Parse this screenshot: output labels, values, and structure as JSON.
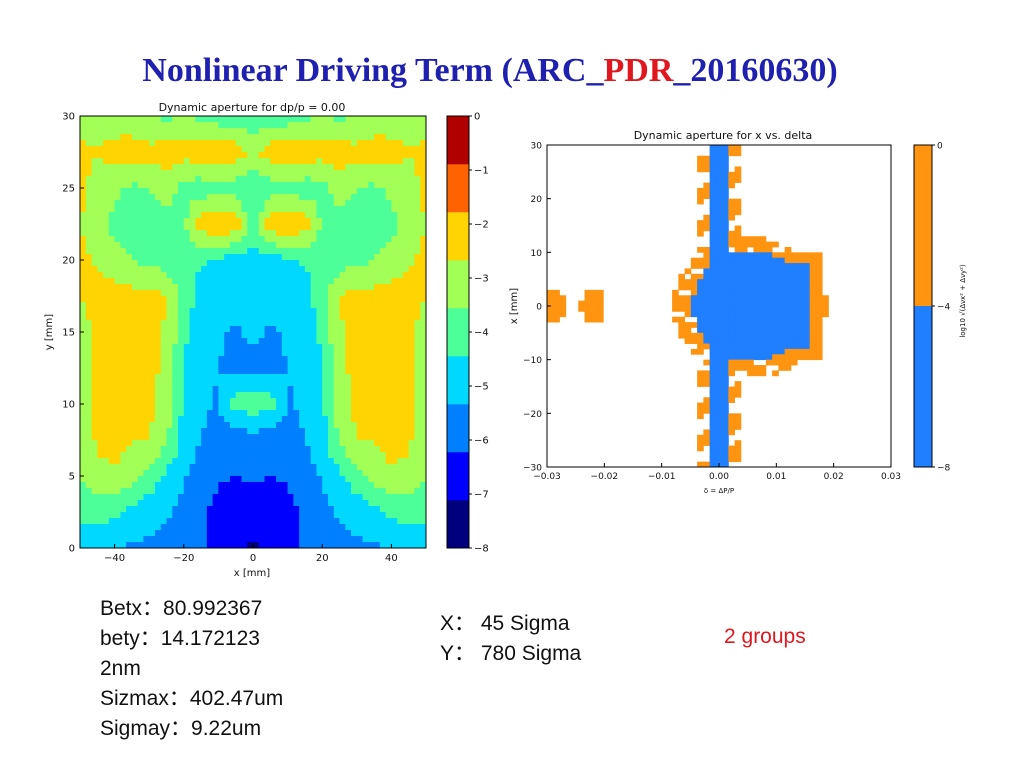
{
  "slide": {
    "title_prefix": "Nonlinear Driving Term (ARC_",
    "title_highlight": "PDR",
    "title_suffix": "_20160630)",
    "params_left": [
      "Betx：80.992367",
      "bety：14.172123",
      "2nm",
      "Sizmax：402.47um",
      "Sigmay：9.22um"
    ],
    "params_mid": [
      "X： 45 Sigma",
      "Y： 780 Sigma"
    ],
    "note": "2 groups"
  },
  "chart_data": [
    {
      "type": "heatmap",
      "title": "Dynamic aperture for dp/p = 0.00",
      "xlabel": "x [mm]",
      "ylabel": "y [mm]",
      "xlim": [
        -50,
        50
      ],
      "ylim": [
        0,
        30
      ],
      "xticks": [
        "−40",
        "−20",
        "0",
        "20",
        "40"
      ],
      "xtick_values": [
        -40,
        -20,
        0,
        20,
        40
      ],
      "yticks": [
        "0",
        "5",
        "10",
        "15",
        "20",
        "25",
        "30"
      ],
      "ytick_values": [
        0,
        5,
        10,
        15,
        20,
        25,
        30
      ],
      "colorbar": {
        "range": [
          -8,
          0
        ],
        "ticks": [
          "0",
          "−1",
          "−2",
          "−3",
          "−4",
          "−5",
          "−6",
          "−7",
          "−8"
        ],
        "tick_values": [
          0,
          -1,
          -2,
          -3,
          -4,
          -5,
          -6,
          -7,
          -8
        ],
        "colors": [
          "#00007f",
          "#0000ff",
          "#0080ff",
          "#00d8ff",
          "#4dff99",
          "#a2ff55",
          "#ffd400",
          "#ff6200",
          "#b00000"
        ]
      },
      "x_nodes": [
        -50,
        -45,
        -40,
        -35,
        -30,
        -25,
        -20,
        -15,
        -10,
        -5,
        0,
        5,
        10,
        15,
        20,
        25,
        30,
        35,
        40,
        45,
        50
      ],
      "y_nodes": [
        30,
        27.5,
        25,
        22.5,
        20,
        17.5,
        15,
        12.5,
        10,
        7.5,
        5,
        2.5,
        0
      ],
      "values": [
        [
          -2.5,
          -2.2,
          -2.6,
          -2.8,
          -3.0,
          -3.2,
          -3.0,
          -3.2,
          -3.5,
          -3.6,
          -3.8,
          -3.6,
          -3.5,
          -3.2,
          -3.0,
          -3.2,
          -3.0,
          -2.8,
          -2.6,
          -2.2,
          -2.5
        ],
        [
          -1.8,
          -2.0,
          -1.6,
          -1.4,
          -1.7,
          -1.5,
          -1.6,
          -1.3,
          -1.5,
          -1.4,
          -2.3,
          -1.4,
          -1.5,
          -1.3,
          -1.6,
          -1.5,
          -1.7,
          -1.4,
          -1.6,
          -2.0,
          -1.8
        ],
        [
          -1.8,
          -2.3,
          -2.8,
          -3.2,
          -3.0,
          -2.5,
          -3.4,
          -3.6,
          -3.3,
          -3.5,
          -3.8,
          -3.5,
          -3.3,
          -3.6,
          -3.4,
          -2.5,
          -3.0,
          -3.2,
          -2.8,
          -2.3,
          -1.8
        ],
        [
          -2.0,
          -2.5,
          -3.3,
          -3.6,
          -3.5,
          -3.4,
          -3.2,
          -1.4,
          -1.2,
          -1.3,
          -3.8,
          -1.3,
          -1.2,
          -1.4,
          -3.2,
          -3.4,
          -3.5,
          -3.6,
          -3.3,
          -2.5,
          -2.0
        ],
        [
          -1.8,
          -2.1,
          -2.6,
          -3.0,
          -3.3,
          -3.5,
          -3.8,
          -3.9,
          -4.2,
          -4.3,
          -4.4,
          -4.3,
          -4.2,
          -3.9,
          -3.8,
          -3.5,
          -3.3,
          -3.0,
          -2.6,
          -2.1,
          -1.8
        ],
        [
          -2.0,
          -1.7,
          -1.5,
          -1.7,
          -1.6,
          -2.0,
          -3.5,
          -4.3,
          -4.6,
          -4.7,
          -4.7,
          -4.7,
          -4.6,
          -4.3,
          -3.5,
          -2.0,
          -1.6,
          -1.7,
          -1.5,
          -1.7,
          -2.0
        ],
        [
          -2.3,
          -1.9,
          -1.6,
          -1.8,
          -1.7,
          -2.1,
          -3.8,
          -4.6,
          -4.9,
          -5.1,
          -4.8,
          -5.1,
          -4.9,
          -4.6,
          -3.8,
          -2.1,
          -1.7,
          -1.8,
          -1.6,
          -1.9,
          -2.3
        ],
        [
          -2.3,
          -1.8,
          -1.4,
          -1.7,
          -1.6,
          -2.3,
          -4.0,
          -4.7,
          -5.0,
          -5.2,
          -5.3,
          -5.2,
          -5.0,
          -4.7,
          -4.0,
          -2.3,
          -1.6,
          -1.7,
          -1.4,
          -1.8,
          -2.3
        ],
        [
          -2.4,
          -1.8,
          -1.6,
          -1.9,
          -1.8,
          -2.6,
          -4.2,
          -4.8,
          -5.1,
          -3.6,
          -3.4,
          -3.6,
          -5.1,
          -4.8,
          -4.2,
          -2.6,
          -1.8,
          -1.9,
          -1.6,
          -1.8,
          -2.4
        ],
        [
          -2.5,
          -1.9,
          -1.7,
          -2.0,
          -1.9,
          -2.8,
          -4.4,
          -5.0,
          -5.4,
          -5.6,
          -5.5,
          -5.6,
          -5.4,
          -5.0,
          -4.4,
          -2.8,
          -1.9,
          -2.0,
          -1.7,
          -1.9,
          -2.5
        ],
        [
          -3.0,
          -2.2,
          -2.1,
          -2.4,
          -3.4,
          -4.2,
          -4.9,
          -5.5,
          -5.9,
          -6.0,
          -5.8,
          -6.0,
          -5.9,
          -5.5,
          -4.9,
          -4.2,
          -3.4,
          -2.4,
          -2.1,
          -2.2,
          -3.0
        ],
        [
          -3.6,
          -3.6,
          -3.8,
          -4.3,
          -4.6,
          -4.9,
          -5.3,
          -5.8,
          -6.3,
          -6.5,
          -6.6,
          -6.5,
          -6.3,
          -5.8,
          -5.3,
          -4.9,
          -4.6,
          -4.3,
          -3.8,
          -3.6,
          -3.6
        ],
        [
          -4.6,
          -4.8,
          -5.0,
          -5.1,
          -5.2,
          -5.3,
          -5.5,
          -5.8,
          -6.2,
          -6.8,
          -7.2,
          -6.8,
          -6.2,
          -5.8,
          -5.5,
          -5.3,
          -5.2,
          -5.1,
          -5.0,
          -4.8,
          -4.6
        ]
      ]
    },
    {
      "type": "heatmap",
      "title": "Dynamic aperture for x vs. delta",
      "xlabel": "δ = ΔP/P",
      "ylabel": "x [mm]",
      "xlim": [
        -0.03,
        0.03
      ],
      "ylim": [
        -30,
        30
      ],
      "xticks": [
        "−0.03",
        "−0.02",
        "−0.01",
        "0.00",
        "0.01",
        "0.02",
        "0.03"
      ],
      "xtick_values": [
        -0.03,
        -0.02,
        -0.01,
        0,
        0.01,
        0.02,
        0.03
      ],
      "yticks": [
        "30",
        "20",
        "10",
        "0",
        "−10",
        "−20",
        "−30"
      ],
      "ytick_values": [
        30,
        20,
        10,
        0,
        -10,
        -20,
        -30
      ],
      "colorbar": {
        "label": "log10 √(Δνx² + Δνy²)",
        "range": [
          -8,
          0
        ],
        "ticks": [
          "0",
          "−4",
          "−8"
        ],
        "tick_values": [
          0,
          -4,
          -8
        ],
        "colors": [
          "#1f7fff",
          "#ff9410"
        ]
      },
      "core_ellipse": {
        "delta_center": 0.0055,
        "x_center": 0,
        "delta_half_width": 0.011,
        "x_half_height": 11
      },
      "stem": {
        "delta_half_width": 0.0015,
        "x_range": [
          -30,
          30
        ]
      },
      "right_extension": {
        "delta_range": [
          0.0055,
          0.016
        ],
        "x_range": [
          -8,
          8
        ]
      },
      "islands": [
        {
          "delta": -0.029,
          "x": 0,
          "size": "small"
        },
        {
          "delta": -0.022,
          "x": 0,
          "size": "small"
        }
      ]
    }
  ]
}
